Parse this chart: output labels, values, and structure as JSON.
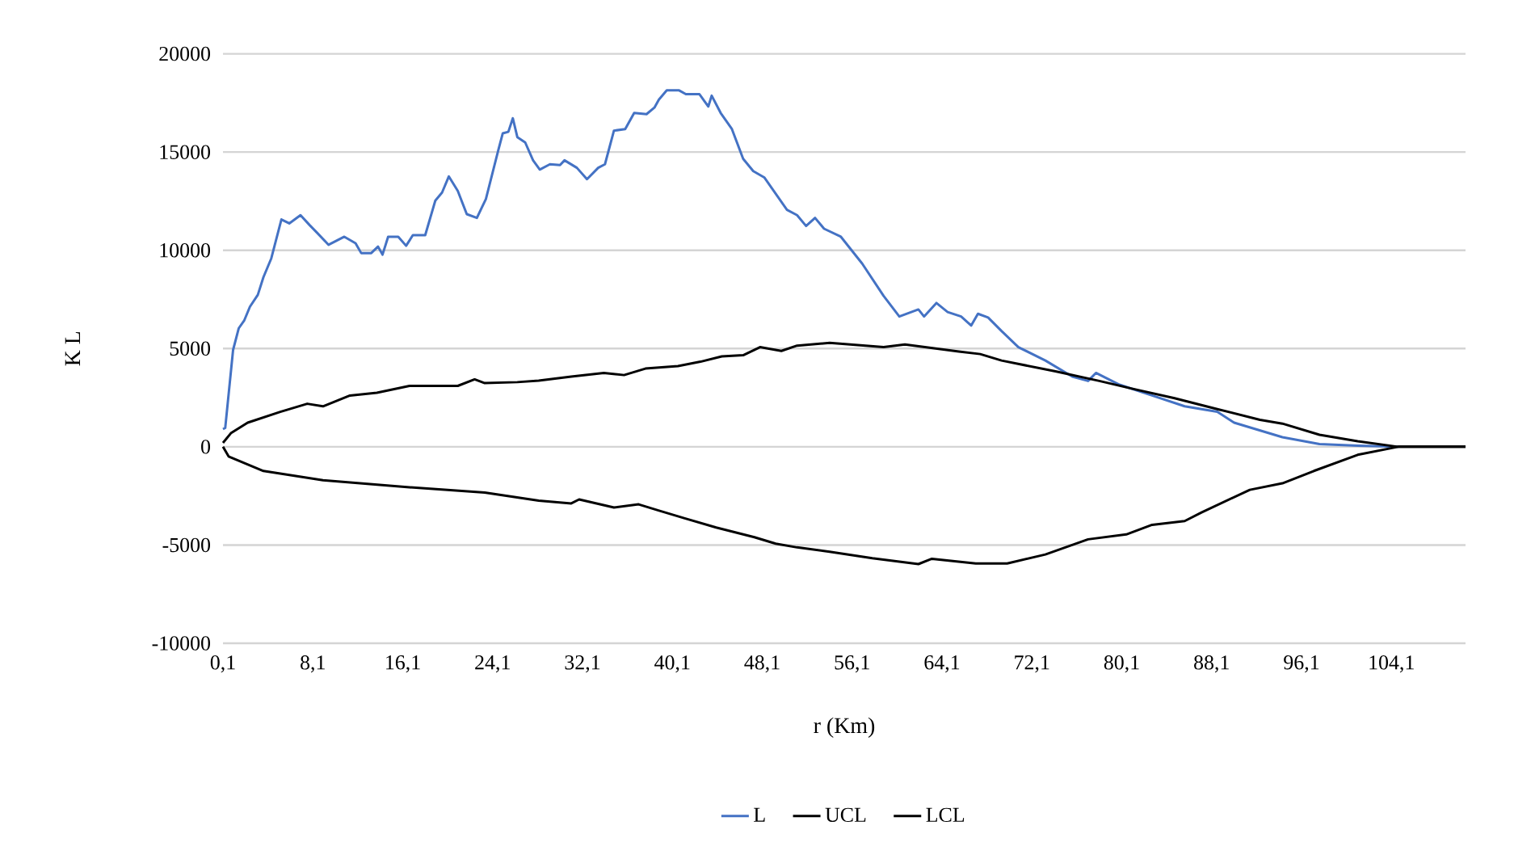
{
  "chart_data": {
    "type": "line",
    "xlabel": "r (Km)",
    "ylabel": "K L",
    "xlim": [
      0.1,
      110.7
    ],
    "ylim": [
      -10000,
      20000
    ],
    "xticks": [
      {
        "value": 0.1,
        "label": "0,1"
      },
      {
        "value": 8.1,
        "label": "8,1"
      },
      {
        "value": 16.1,
        "label": "16,1"
      },
      {
        "value": 24.1,
        "label": "24,1"
      },
      {
        "value": 32.1,
        "label": "32,1"
      },
      {
        "value": 40.1,
        "label": "40,1"
      },
      {
        "value": 48.1,
        "label": "48,1"
      },
      {
        "value": 56.1,
        "label": "56,1"
      },
      {
        "value": 64.1,
        "label": "64,1"
      },
      {
        "value": 72.1,
        "label": "72,1"
      },
      {
        "value": 80.1,
        "label": "80,1"
      },
      {
        "value": 88.1,
        "label": "88,1"
      },
      {
        "value": 96.1,
        "label": "96,1"
      },
      {
        "value": 104.1,
        "label": "104,1"
      }
    ],
    "yticks": [
      -10000,
      -5000,
      0,
      5000,
      10000,
      15000,
      20000
    ],
    "grid": "y",
    "legend": "bottom",
    "line_style": "solid",
    "series": [
      {
        "name": "L",
        "color": "#4472c4",
        "x": [
          0.1,
          0.3,
          1.0,
          1.5,
          2.0,
          2.5,
          3.2,
          3.7,
          4.4,
          5.3,
          6.0,
          7.0,
          7.8,
          8.5,
          9.5,
          10.9,
          11.9,
          12.4,
          13.3,
          13.9,
          14.3,
          14.8,
          15.7,
          16.4,
          17.0,
          18.1,
          19.0,
          19.6,
          20.2,
          21.0,
          21.8,
          22.7,
          23.5,
          24.6,
          25.0,
          25.5,
          25.9,
          26.3,
          27.0,
          27.7,
          28.3,
          29.2,
          30.1,
          30.5,
          31.6,
          32.5,
          33.5,
          34.1,
          34.9,
          35.9,
          36.7,
          37.8,
          38.5,
          38.9,
          39.6,
          40.7,
          41.3,
          42.5,
          43.3,
          43.6,
          44.4,
          45.4,
          46.4,
          47.3,
          48.3,
          49.3,
          50.3,
          51.2,
          52.0,
          52.8,
          53.6,
          55.1,
          57.0,
          58.9,
          60.3,
          62.0,
          62.5,
          63.6,
          64.6,
          65.8,
          66.7,
          67.3,
          68.2,
          69.4,
          70.9,
          73.3,
          75.7,
          77.1,
          77.8,
          79.9,
          82.8,
          85.7,
          88.6,
          90.1,
          94.4,
          97.7,
          101.1,
          104.7
        ],
        "values": [
          900,
          960,
          4930,
          6030,
          6440,
          7130,
          7730,
          8630,
          9590,
          11570,
          11370,
          11790,
          11290,
          10880,
          10280,
          10690,
          10360,
          9860,
          9860,
          10190,
          9780,
          10690,
          10690,
          10230,
          10770,
          10770,
          12530,
          12940,
          13760,
          13020,
          11840,
          11650,
          12610,
          15080,
          15950,
          16030,
          16720,
          15760,
          15490,
          14580,
          14110,
          14380,
          14340,
          14580,
          14200,
          13620,
          14200,
          14380,
          16090,
          16170,
          16990,
          16930,
          17260,
          17670,
          18140,
          18140,
          17950,
          17950,
          17320,
          17870,
          16990,
          16170,
          14660,
          14030,
          13700,
          12880,
          12060,
          11790,
          11240,
          11650,
          11100,
          10690,
          9320,
          7680,
          6630,
          6990,
          6630,
          7320,
          6860,
          6630,
          6170,
          6770,
          6580,
          5890,
          5070,
          4390,
          3570,
          3350,
          3760,
          3160,
          2610,
          2060,
          1780,
          1230,
          490,
          140,
          60,
          0
        ]
      },
      {
        "name": "UCL",
        "color": "#000000",
        "x": [
          0.1,
          0.8,
          2.3,
          5.2,
          7.6,
          9.0,
          11.4,
          13.8,
          16.7,
          21.0,
          22.5,
          23.4,
          26.3,
          28.2,
          31.1,
          34.0,
          35.8,
          37.7,
          40.6,
          42.6,
          44.5,
          46.4,
          47.9,
          49.8,
          51.2,
          54.1,
          58.9,
          60.8,
          65.6,
          67.5,
          69.4,
          74.2,
          78.1,
          81.0,
          84.8,
          88.6,
          92.4,
          94.4,
          97.7,
          101.1,
          104.7,
          110.7
        ],
        "values": [
          200,
          690,
          1230,
          1780,
          2190,
          2060,
          2610,
          2750,
          3100,
          3100,
          3430,
          3240,
          3290,
          3370,
          3570,
          3760,
          3650,
          3980,
          4110,
          4330,
          4600,
          4660,
          5070,
          4880,
          5150,
          5290,
          5070,
          5210,
          4850,
          4720,
          4390,
          3840,
          3350,
          2960,
          2470,
          1920,
          1370,
          1180,
          610,
          280,
          0,
          0
        ]
      },
      {
        "name": "LCL",
        "color": "#000000",
        "x": [
          0.1,
          0.6,
          3.7,
          9.0,
          16.7,
          23.4,
          28.2,
          31.1,
          31.8,
          34.9,
          37.1,
          38.8,
          41.2,
          44.0,
          47.4,
          49.3,
          51.2,
          54.1,
          57.9,
          62.0,
          63.2,
          67.1,
          69.9,
          73.3,
          77.1,
          80.5,
          82.8,
          85.7,
          87.2,
          91.5,
          94.4,
          97.2,
          101.1,
          104.7,
          110.7
        ],
        "values": [
          0,
          -490,
          -1230,
          -1700,
          -2060,
          -2330,
          -2740,
          -2880,
          -2680,
          -3090,
          -2930,
          -3230,
          -3640,
          -4110,
          -4600,
          -4930,
          -5120,
          -5340,
          -5670,
          -5970,
          -5700,
          -5940,
          -5940,
          -5480,
          -4710,
          -4460,
          -3970,
          -3780,
          -3340,
          -2190,
          -1860,
          -1230,
          -410,
          0,
          0
        ]
      }
    ]
  }
}
